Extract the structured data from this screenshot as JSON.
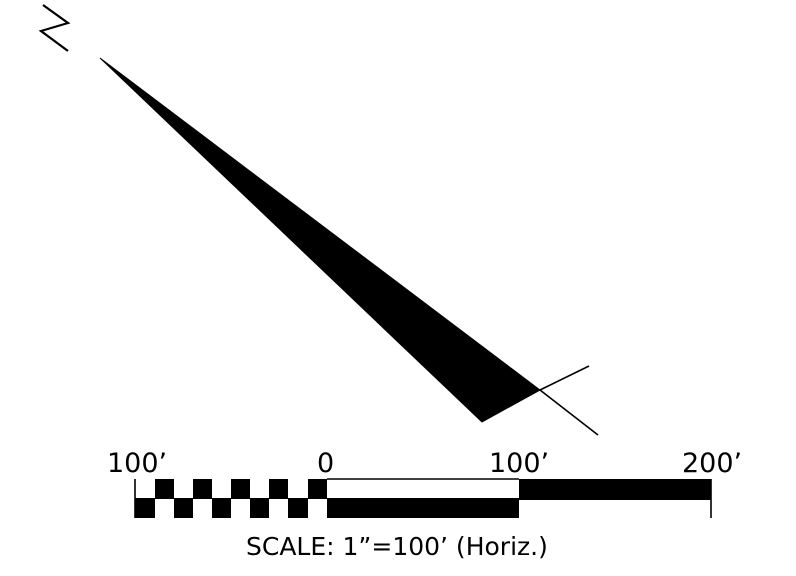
{
  "north_arrow": {
    "letter": "N",
    "color": "#000000"
  },
  "scale_bar": {
    "labels": [
      "100’",
      "0",
      "100’",
      "200’"
    ],
    "caption": "SCALE:  1”=100’ (Horiz.)",
    "fill_color": "#000000",
    "background": "#ffffff"
  }
}
